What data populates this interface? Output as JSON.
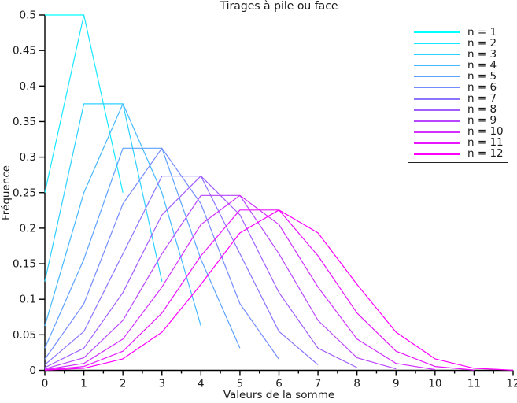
{
  "chart_data": {
    "type": "line",
    "title": "Tirages à pile ou face",
    "xlabel": "Valeurs de la somme",
    "ylabel": "Fréquence",
    "xlim": [
      0,
      12
    ],
    "ylim": [
      0,
      0.5
    ],
    "grid": false,
    "legend_position": "upper-right",
    "x_tick_labels": [
      "0",
      "1",
      "2",
      "3",
      "4",
      "5",
      "6",
      "7",
      "8",
      "9",
      "10",
      "11",
      "12"
    ],
    "x_tick_values": [
      0,
      1,
      2,
      3,
      4,
      5,
      6,
      7,
      8,
      9,
      10,
      11,
      12
    ],
    "x_minor_tick_values": [
      0.5,
      1.5,
      2.5,
      3.5,
      4.5,
      5.5,
      6.5,
      7.5,
      8.5,
      9.5,
      10.5,
      11.5
    ],
    "y_tick_labels": [
      "0",
      "0.05",
      "0.1",
      "0.15",
      "0.2",
      "0.25",
      "0.3",
      "0.35",
      "0.4",
      "0.45",
      "0.5"
    ],
    "y_tick_values": [
      0,
      0.05,
      0.1,
      0.15,
      0.2,
      0.25,
      0.3,
      0.35,
      0.4,
      0.45,
      0.5
    ],
    "axis_color": "#000000",
    "text_color": "#1a1a1a",
    "series": [
      {
        "name": "n = 1",
        "color": "#00FFFF",
        "x": [
          0,
          1
        ],
        "values": [
          0.5,
          0.5
        ]
      },
      {
        "name": "n = 2",
        "color": "#17E8FF",
        "x": [
          0,
          1,
          2
        ],
        "values": [
          0.25,
          0.5,
          0.25
        ]
      },
      {
        "name": "n = 3",
        "color": "#2ED1FF",
        "x": [
          0,
          1,
          2,
          3
        ],
        "values": [
          0.125,
          0.375,
          0.375,
          0.125
        ]
      },
      {
        "name": "n = 4",
        "color": "#46B9FF",
        "x": [
          0,
          1,
          2,
          3,
          4
        ],
        "values": [
          0.0625,
          0.25,
          0.375,
          0.25,
          0.0625
        ]
      },
      {
        "name": "n = 5",
        "color": "#5DA2FF",
        "x": [
          0,
          1,
          2,
          3,
          4,
          5
        ],
        "values": [
          0.03125,
          0.15625,
          0.3125,
          0.3125,
          0.15625,
          0.03125
        ]
      },
      {
        "name": "n = 6",
        "color": "#748BFF",
        "x": [
          0,
          1,
          2,
          3,
          4,
          5,
          6
        ],
        "values": [
          0.015625,
          0.09375,
          0.234375,
          0.3125,
          0.234375,
          0.09375,
          0.015625
        ]
      },
      {
        "name": "n = 7",
        "color": "#8B74FF",
        "x": [
          0,
          1,
          2,
          3,
          4,
          5,
          6,
          7
        ],
        "values": [
          0.0078125,
          0.0546875,
          0.1640625,
          0.2734375,
          0.2734375,
          0.1640625,
          0.0546875,
          0.0078125
        ]
      },
      {
        "name": "n = 8",
        "color": "#A25DFF",
        "x": [
          0,
          1,
          2,
          3,
          4,
          5,
          6,
          7,
          8
        ],
        "values": [
          0.00390625,
          0.03125,
          0.109375,
          0.21875,
          0.2734375,
          0.21875,
          0.109375,
          0.03125,
          0.00390625
        ]
      },
      {
        "name": "n = 9",
        "color": "#B946FF",
        "x": [
          0,
          1,
          2,
          3,
          4,
          5,
          6,
          7,
          8,
          9
        ],
        "values": [
          0.00195313,
          0.01757813,
          0.0703125,
          0.1640625,
          0.24609375,
          0.24609375,
          0.1640625,
          0.0703125,
          0.01757813,
          0.00195313
        ]
      },
      {
        "name": "n = 10",
        "color": "#D12EFF",
        "x": [
          0,
          1,
          2,
          3,
          4,
          5,
          6,
          7,
          8,
          9,
          10
        ],
        "values": [
          0.00097656,
          0.00976563,
          0.04394531,
          0.1171875,
          0.20507813,
          0.24609375,
          0.20507813,
          0.1171875,
          0.04394531,
          0.00976563,
          0.00097656
        ]
      },
      {
        "name": "n = 11",
        "color": "#E817FF",
        "x": [
          0,
          1,
          2,
          3,
          4,
          5,
          6,
          7,
          8,
          9,
          10,
          11
        ],
        "values": [
          0.00048828,
          0.00537109,
          0.02685547,
          0.08056641,
          0.16113281,
          0.22558594,
          0.22558594,
          0.16113281,
          0.08056641,
          0.02685547,
          0.00537109,
          0.00048828
        ]
      },
      {
        "name": "n = 12",
        "color": "#FF00FF",
        "x": [
          0,
          1,
          2,
          3,
          4,
          5,
          6,
          7,
          8,
          9,
          10,
          11,
          12
        ],
        "values": [
          0.00024414,
          0.00292969,
          0.01611328,
          0.05371094,
          0.12084961,
          0.19335938,
          0.22558594,
          0.19335938,
          0.12084961,
          0.05371094,
          0.01611328,
          0.00292969,
          0.00024414
        ]
      }
    ]
  }
}
